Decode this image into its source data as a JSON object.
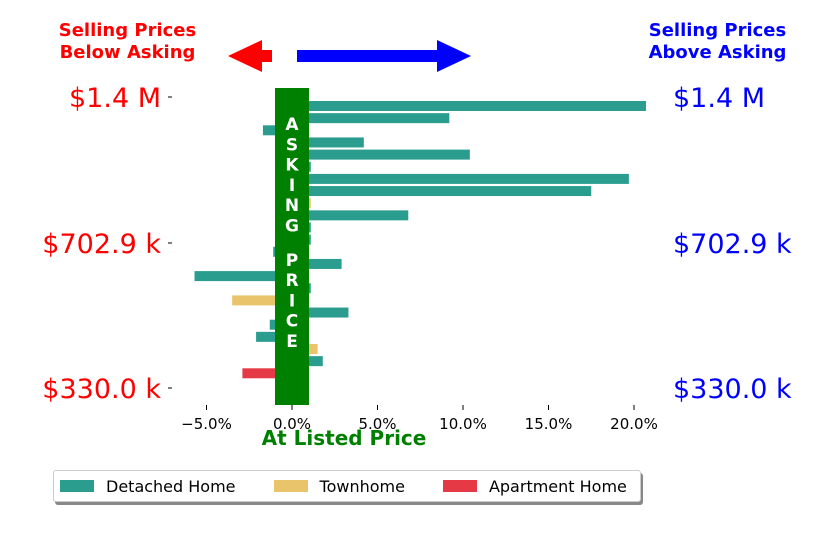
{
  "chart_data": {
    "type": "bar",
    "orientation": "horizontal",
    "title": "",
    "xlabel": "At Listed Price",
    "xticks": [
      "−5.0%",
      "0.0%",
      "5.0%",
      "10.0%",
      "15.0%",
      "20.0%"
    ],
    "xlim": [
      -7,
      21
    ],
    "left_yticks": [
      "$1.4 M",
      "$702.9 k",
      "$330.0 k"
    ],
    "right_yticks": [
      "$1.4 M",
      "$702.9 k",
      "$330.0 k"
    ],
    "annotations": {
      "below_asking": "Selling Prices\nBelow Asking",
      "above_asking": "Selling Prices\nAbove Asking",
      "asking_price": "ASKING PRICE"
    },
    "series": [
      {
        "name": "Detached Home",
        "color": "#2a9d8f",
        "values": [
          20.7,
          9.2,
          -1.7,
          4.2,
          10.4,
          1.1,
          19.7,
          17.5,
          0,
          6.8,
          1.1,
          1.1,
          -1.1,
          2.9,
          -5.7,
          1.1,
          0,
          3.3,
          -1.3,
          -2.1,
          0,
          1.8,
          0
        ]
      },
      {
        "name": "Townhome",
        "color": "#e9c46a",
        "values": [
          0,
          0,
          0,
          0,
          0,
          0,
          0,
          0,
          1.1,
          0,
          0,
          0,
          0,
          0,
          0,
          0,
          -3.5,
          0,
          0,
          0,
          1.5,
          0,
          0
        ]
      },
      {
        "name": "Apartment Home",
        "color": "#e63946",
        "values": [
          0,
          0,
          0,
          0,
          0,
          0,
          0,
          0,
          0,
          0,
          0,
          0,
          0,
          0,
          0,
          0,
          0,
          0,
          0,
          0,
          0,
          0,
          -2.9
        ]
      }
    ],
    "legend_position": "bottom",
    "colors": {
      "left_text": "#ff0000",
      "right_text": "#0000ff",
      "center_band": "#008000"
    }
  }
}
